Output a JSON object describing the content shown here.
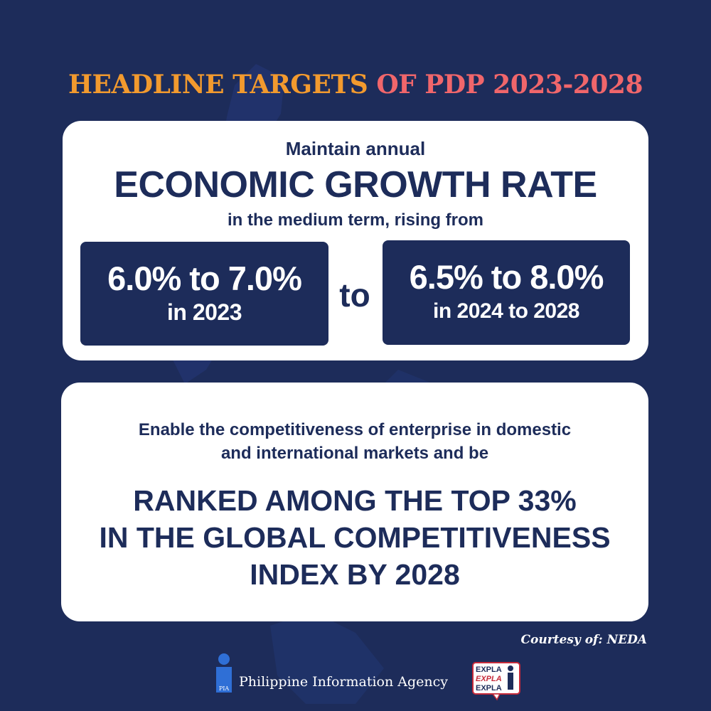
{
  "headline": {
    "part1": "HEADLINE TARGETS",
    "part2": " OF PDP 2023-2028"
  },
  "growth_card": {
    "intro": "Maintain annual",
    "title": "ECONOMIC GROWTH RATE",
    "subtitle": "in the medium term, rising from",
    "range_left": {
      "value": "6.0% to 7.0%",
      "period": "in 2023"
    },
    "connector": "to",
    "range_right": {
      "value": "6.5% to 8.0%",
      "period": "in 2024 to 2028"
    }
  },
  "competitiveness_card": {
    "intro_line1": "Enable the competitiveness of enterprise in domestic",
    "intro_line2": "and international markets and be",
    "main_line1": "RANKED AMONG THE TOP 33%",
    "main_line2": "IN THE GLOBAL COMPETITIVENESS",
    "main_line3": "INDEX BY 2028"
  },
  "footer": {
    "courtesy": "Courtesy of: NEDA",
    "agency_name": "Philippine Information Agency",
    "agency_logo_text": "PIA",
    "explain_logo_text": [
      "EXPLA",
      "EXPLA",
      "EXPLA"
    ]
  },
  "colors": {
    "background": "#1d2c5a",
    "headline_orange": "#f29a2e",
    "headline_coral": "#f0666b",
    "navy": "#1d2c5a",
    "card": "#ffffff"
  }
}
